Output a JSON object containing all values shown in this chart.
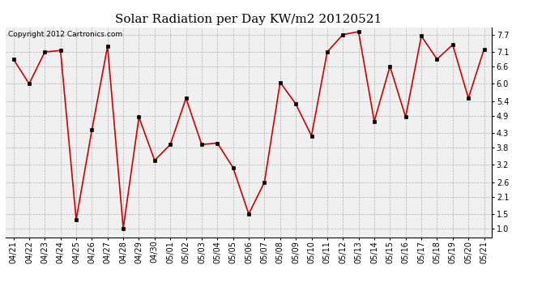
{
  "title": "Solar Radiation per Day KW/m2 20120521",
  "copyright": "Copyright 2012 Cartronics.com",
  "dates": [
    "04/21",
    "04/22",
    "04/23",
    "04/24",
    "04/25",
    "04/26",
    "04/27",
    "04/28",
    "04/29",
    "04/30",
    "05/01",
    "05/02",
    "05/03",
    "05/04",
    "05/05",
    "05/06",
    "05/07",
    "05/08",
    "05/09",
    "05/10",
    "05/11",
    "05/12",
    "05/13",
    "05/14",
    "05/15",
    "05/16",
    "05/17",
    "05/18",
    "05/19",
    "05/20",
    "05/21"
  ],
  "values": [
    6.85,
    6.0,
    7.1,
    7.15,
    1.3,
    4.4,
    7.3,
    1.0,
    4.85,
    3.35,
    3.9,
    5.5,
    3.9,
    3.95,
    3.1,
    1.5,
    2.6,
    6.05,
    5.3,
    4.2,
    7.1,
    7.7,
    7.8,
    4.7,
    6.6,
    4.85,
    7.65,
    6.85,
    7.35,
    5.5,
    7.2
  ],
  "yticks": [
    1.0,
    1.5,
    2.1,
    2.6,
    3.2,
    3.8,
    4.3,
    4.9,
    5.4,
    6.0,
    6.6,
    7.1,
    7.7
  ],
  "ymin": 0.7,
  "ymax": 7.95,
  "line_color": "#cc0000",
  "marker_color": "#000000",
  "bg_color": "#ffffff",
  "plot_bg_color": "#f0f0f0",
  "grid_color": "#aaaaaa",
  "title_fontsize": 11,
  "copyright_fontsize": 6.5,
  "tick_fontsize": 7
}
